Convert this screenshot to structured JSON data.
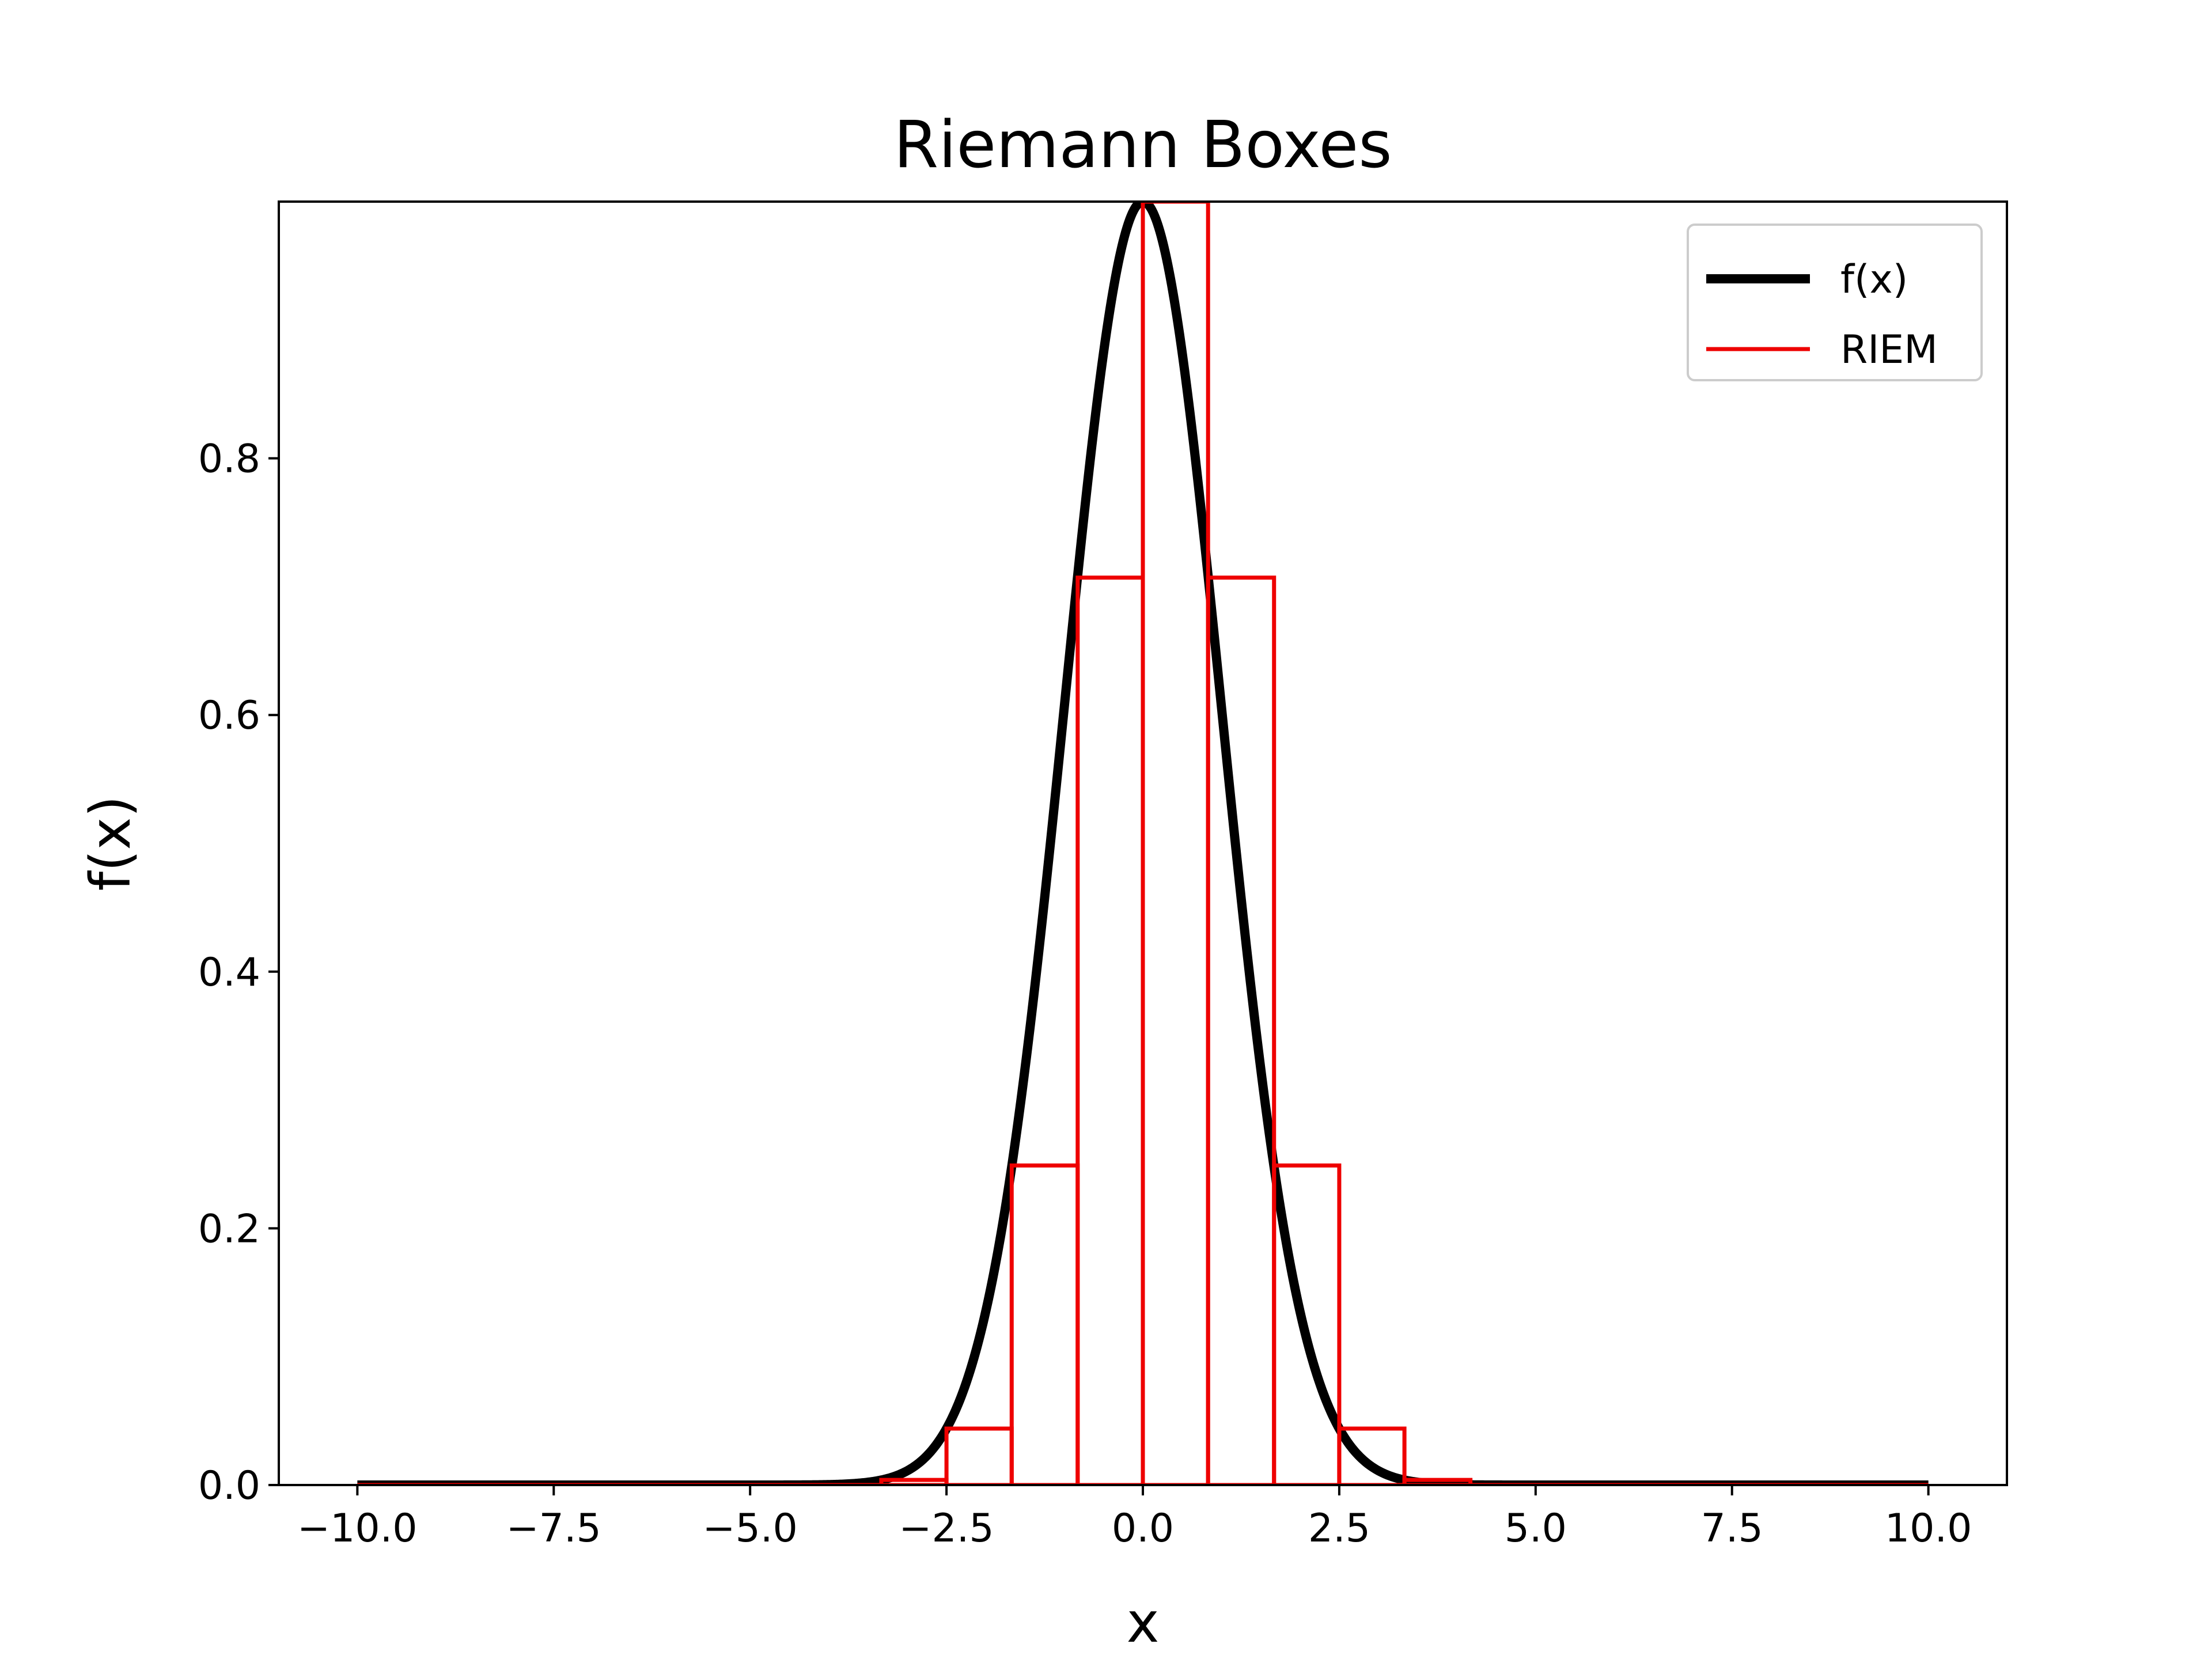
{
  "chart_data": {
    "type": "line",
    "title": "Riemann Boxes",
    "xlabel": "x",
    "ylabel": "f(x)",
    "xlim": [
      -11,
      11
    ],
    "ylim": [
      0,
      1
    ],
    "x_ticks": [
      -10.0,
      -7.5,
      -5.0,
      -2.5,
      0.0,
      2.5,
      5.0,
      7.5,
      10.0
    ],
    "x_tick_labels": [
      "−10.0",
      "−7.5",
      "−5.0",
      "−2.5",
      "0.0",
      "2.5",
      "5.0",
      "7.5",
      "10.0"
    ],
    "y_ticks": [
      0.0,
      0.2,
      0.4,
      0.6,
      0.8
    ],
    "y_tick_labels": [
      "0.0",
      "0.2",
      "0.4",
      "0.6",
      "0.8"
    ],
    "grid": false,
    "legend_position": "top-right",
    "series": [
      {
        "name": "f(x)",
        "color": "#000000",
        "function": "exp(-x^2/2)",
        "x_range": [
          -10,
          10
        ]
      },
      {
        "name": "RIEM",
        "color": "#ee0000",
        "style": "step",
        "boxes": [
          {
            "x0": -10.0,
            "x1": -3.33,
            "height": 0.0
          },
          {
            "x0": -3.33,
            "x1": -2.5,
            "height": 0.004
          },
          {
            "x0": -2.5,
            "x1": -1.67,
            "height": 0.044
          },
          {
            "x0": -1.67,
            "x1": -0.83,
            "height": 0.249
          },
          {
            "x0": -0.83,
            "x1": 0.0,
            "height": 0.707
          },
          {
            "x0": 0.0,
            "x1": 0.83,
            "height": 1.0
          },
          {
            "x0": 0.83,
            "x1": 1.67,
            "height": 0.707
          },
          {
            "x0": 1.67,
            "x1": 2.5,
            "height": 0.249
          },
          {
            "x0": 2.5,
            "x1": 3.33,
            "height": 0.044
          },
          {
            "x0": 3.33,
            "x1": 4.17,
            "height": 0.004
          },
          {
            "x0": 4.17,
            "x1": 10.0,
            "height": 0.0
          }
        ]
      }
    ]
  }
}
